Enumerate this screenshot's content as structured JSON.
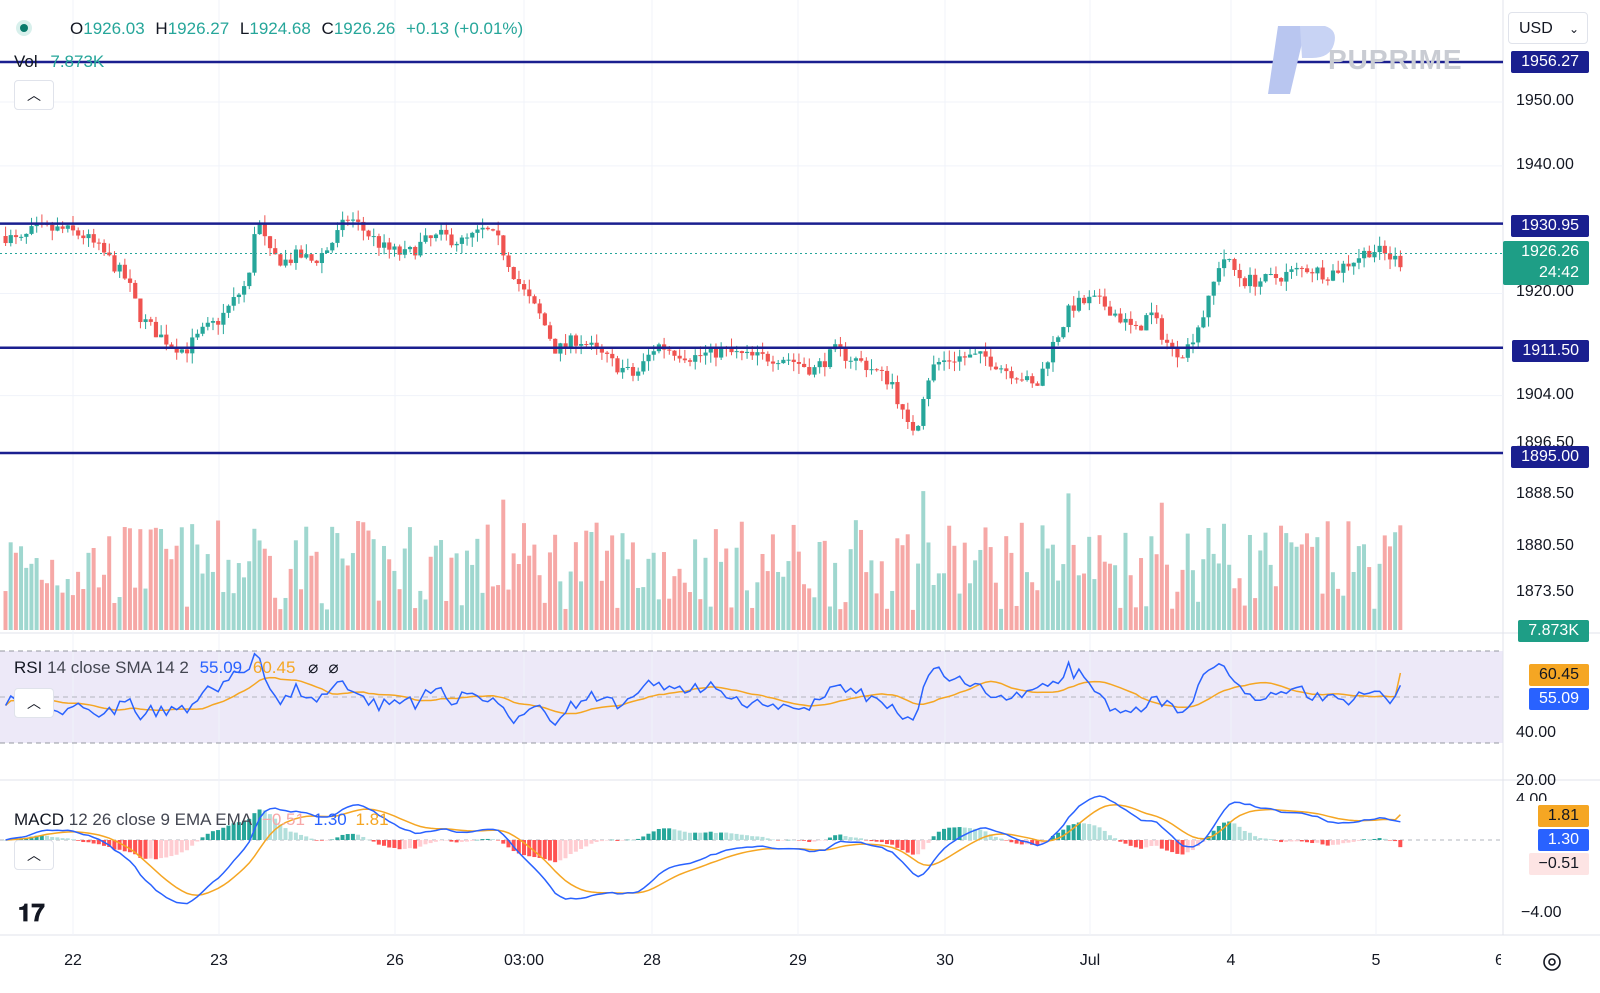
{
  "header": {
    "o_label": "O",
    "o_value": "1926.03",
    "h_label": "H",
    "h_value": "1926.27",
    "l_label": "L",
    "l_value": "1924.68",
    "c_label": "C",
    "c_value": "1926.26",
    "change": "+0.13 (+0.01%)"
  },
  "currency": "USD",
  "brand": "PUPRIME",
  "volume": {
    "label": "Vol",
    "value": "7.873K"
  },
  "price_axis": [
    "1950.00",
    "1940.00",
    "1920.00",
    "1904.00",
    "1888.50",
    "1880.50",
    "1873.50"
  ],
  "hidden_tick": "1896.50",
  "levels": [
    {
      "value": 1956.27,
      "label": "1956.27"
    },
    {
      "value": 1930.95,
      "label": "1930.95"
    },
    {
      "value": 1911.5,
      "label": "1911.50"
    },
    {
      "value": 1895.0,
      "label": "1895.00"
    }
  ],
  "last_price": {
    "value": "1926.26",
    "countdown": "24:42"
  },
  "volume_badge": "7.873K",
  "rsi": {
    "legend_name": "RSI",
    "legend_params": "14 close SMA 14 2",
    "value": "55.09",
    "sma": "60.45",
    "axis": [
      "40.00",
      "20.00"
    ]
  },
  "macd": {
    "legend_name": "MACD",
    "legend_params": "12 26 close 9 EMA EMA",
    "hist": "−0.51",
    "macd": "1.30",
    "signal": "1.81",
    "axis": [
      "−4.00"
    ],
    "top_cut": "4.00"
  },
  "x_axis": [
    "22",
    "23",
    "26",
    "03:00",
    "28",
    "29",
    "30",
    "Jul",
    "4",
    "5",
    "6"
  ],
  "colors": {
    "up": "#26a69a",
    "down": "#ef5350",
    "level": "#1a1f8f",
    "rsi": "#2962ff",
    "sma": "#f5a623",
    "macd": "#2962ff",
    "signal": "#f5a623"
  },
  "chart_data": {
    "type": "candlestick",
    "symbol_quote": "USD",
    "price_range": [
      1868,
      1957
    ],
    "rsi_range": [
      20,
      80
    ],
    "macd_range": [
      -5,
      4
    ],
    "key_path": [
      [
        0,
        1929
      ],
      [
        10,
        1928
      ],
      [
        20,
        1930
      ],
      [
        40,
        1930
      ],
      [
        55,
        1929
      ],
      [
        70,
        1926
      ],
      [
        85,
        1922
      ],
      [
        95,
        1916
      ],
      [
        110,
        1913
      ],
      [
        125,
        1911
      ],
      [
        138,
        1914
      ],
      [
        150,
        1916
      ],
      [
        160,
        1919
      ],
      [
        170,
        1922
      ],
      [
        175,
        1932
      ],
      [
        185,
        1926
      ],
      [
        195,
        1925
      ],
      [
        205,
        1926
      ],
      [
        215,
        1925
      ],
      [
        225,
        1927
      ],
      [
        240,
        1932
      ],
      [
        265,
        1927
      ],
      [
        280,
        1926
      ],
      [
        292,
        1928
      ],
      [
        305,
        1929
      ],
      [
        320,
        1928
      ],
      [
        335,
        1930
      ],
      [
        345,
        1928
      ],
      [
        360,
        1921
      ],
      [
        375,
        1916
      ],
      [
        385,
        1911
      ],
      [
        400,
        1913
      ],
      [
        425,
        1909
      ],
      [
        440,
        1907
      ],
      [
        455,
        1912
      ],
      [
        480,
        1910
      ],
      [
        500,
        1911
      ],
      [
        520,
        1910
      ],
      [
        545,
        1910
      ],
      [
        565,
        1908
      ],
      [
        580,
        1911
      ],
      [
        600,
        1909
      ],
      [
        620,
        1906
      ],
      [
        630,
        1899
      ],
      [
        637,
        1899
      ],
      [
        643,
        1906
      ],
      [
        650,
        1909
      ],
      [
        665,
        1910
      ],
      [
        685,
        1910
      ],
      [
        700,
        1908
      ],
      [
        710,
        1907
      ],
      [
        720,
        1905
      ],
      [
        730,
        1911
      ],
      [
        745,
        1918
      ],
      [
        760,
        1919
      ],
      [
        770,
        1918
      ],
      [
        780,
        1916
      ],
      [
        790,
        1914
      ],
      [
        800,
        1917
      ],
      [
        815,
        1911
      ],
      [
        825,
        1911
      ],
      [
        840,
        1918
      ],
      [
        850,
        1926
      ],
      [
        865,
        1922
      ],
      [
        880,
        1922
      ],
      [
        895,
        1923
      ],
      [
        910,
        1924
      ],
      [
        925,
        1923
      ],
      [
        940,
        1925
      ],
      [
        955,
        1927
      ],
      [
        965,
        1926
      ],
      [
        975,
        1925
      ]
    ],
    "volume_bars": 270,
    "indicator_values": {
      "rsi": 55.09,
      "rsi_sma": 60.45,
      "macd_hist": -0.51,
      "macd": 1.3,
      "signal": 1.81
    }
  }
}
